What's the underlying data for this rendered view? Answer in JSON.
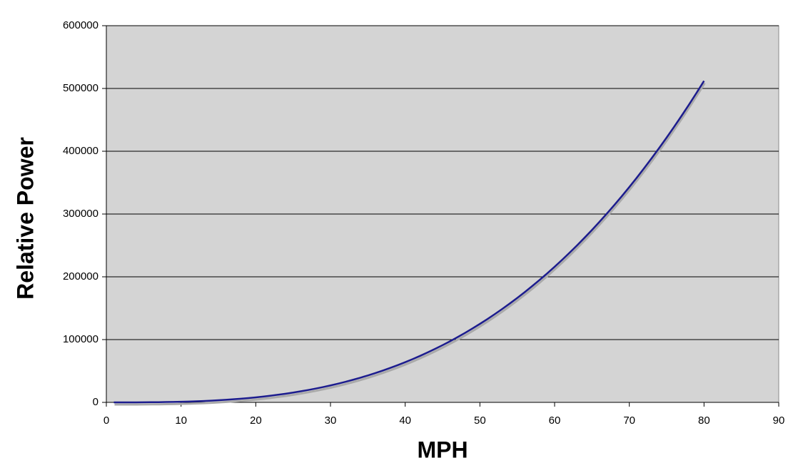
{
  "chart_data": {
    "type": "line",
    "x_label": "MPH",
    "y_label": "Relative Power",
    "x": [
      1,
      2,
      3,
      4,
      5,
      6,
      7,
      8,
      9,
      10,
      11,
      12,
      13,
      14,
      15,
      16,
      17,
      18,
      19,
      20,
      21,
      22,
      23,
      24,
      25,
      26,
      27,
      28,
      29,
      30,
      31,
      32,
      33,
      34,
      35,
      36,
      37,
      38,
      39,
      40,
      41,
      42,
      43,
      44,
      45,
      46,
      47,
      48,
      49,
      50,
      51,
      52,
      53,
      54,
      55,
      56,
      57,
      58,
      59,
      60,
      61,
      62,
      63,
      64,
      65,
      66,
      67,
      68,
      69,
      70,
      71,
      72,
      73,
      74,
      75,
      76,
      77,
      78,
      79,
      80
    ],
    "series": [
      {
        "color": "#1c1c8e",
        "values": [
          1,
          8,
          27,
          64,
          125,
          216,
          343,
          512,
          729,
          1000,
          1331,
          1728,
          2197,
          2744,
          3375,
          4096,
          4913,
          5832,
          6859,
          8000,
          9261,
          10648,
          12167,
          13824,
          15625,
          17576,
          19683,
          21952,
          24389,
          27000,
          29791,
          32768,
          35937,
          39304,
          42875,
          46656,
          50653,
          54872,
          59319,
          64000,
          68921,
          74088,
          79507,
          85184,
          91125,
          97336,
          103823,
          110592,
          117649,
          125000,
          132651,
          140608,
          148877,
          157464,
          166375,
          175616,
          185193,
          195112,
          205379,
          216000,
          226981,
          238328,
          250047,
          262144,
          274625,
          287496,
          300763,
          314432,
          328509,
          343000,
          357911,
          373248,
          389017,
          405224,
          421875,
          438976,
          456533,
          474552,
          493039,
          512000
        ]
      }
    ],
    "xlim": [
      0,
      90
    ],
    "xticks": [
      0,
      10,
      20,
      30,
      40,
      50,
      60,
      70,
      80,
      90
    ],
    "ylim": [
      0,
      600000
    ],
    "yticks": [
      0,
      100000,
      200000,
      300000,
      400000,
      500000,
      600000
    ],
    "grid": true,
    "plot_background": "#d4d4d4"
  }
}
